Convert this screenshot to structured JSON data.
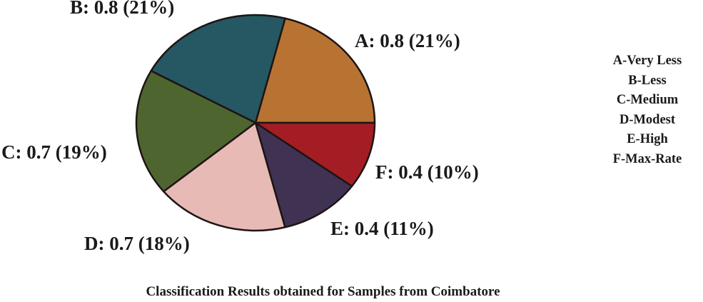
{
  "chart_data": {
    "type": "pie",
    "title": "Classification Results obtained for Samples from Coimbatore",
    "slices": [
      {
        "key": "A",
        "value": 0.8,
        "percent": 21,
        "label": "A: 0.8 (21%)",
        "color": "#B87333"
      },
      {
        "key": "B",
        "value": 0.8,
        "percent": 21,
        "label": "B: 0.8 (21%)",
        "color": "#255863"
      },
      {
        "key": "C",
        "value": 0.7,
        "percent": 19,
        "label": "C: 0.7 (19%)",
        "color": "#4F6530"
      },
      {
        "key": "D",
        "value": 0.7,
        "percent": 18,
        "label": "D: 0.7 (18%)",
        "color": "#E7BAB6"
      },
      {
        "key": "E",
        "value": 0.4,
        "percent": 11,
        "label": "E: 0.4 (11%)",
        "color": "#3F3252"
      },
      {
        "key": "F",
        "value": 0.4,
        "percent": 10,
        "label": "F: 0.4 (10%)",
        "color": "#A51D24"
      }
    ],
    "legend_position": "right",
    "legend": [
      "A-Very Less",
      "B-Less",
      "C-Medium",
      "D-Modest",
      "E-High",
      "F-Max-Rate"
    ]
  }
}
